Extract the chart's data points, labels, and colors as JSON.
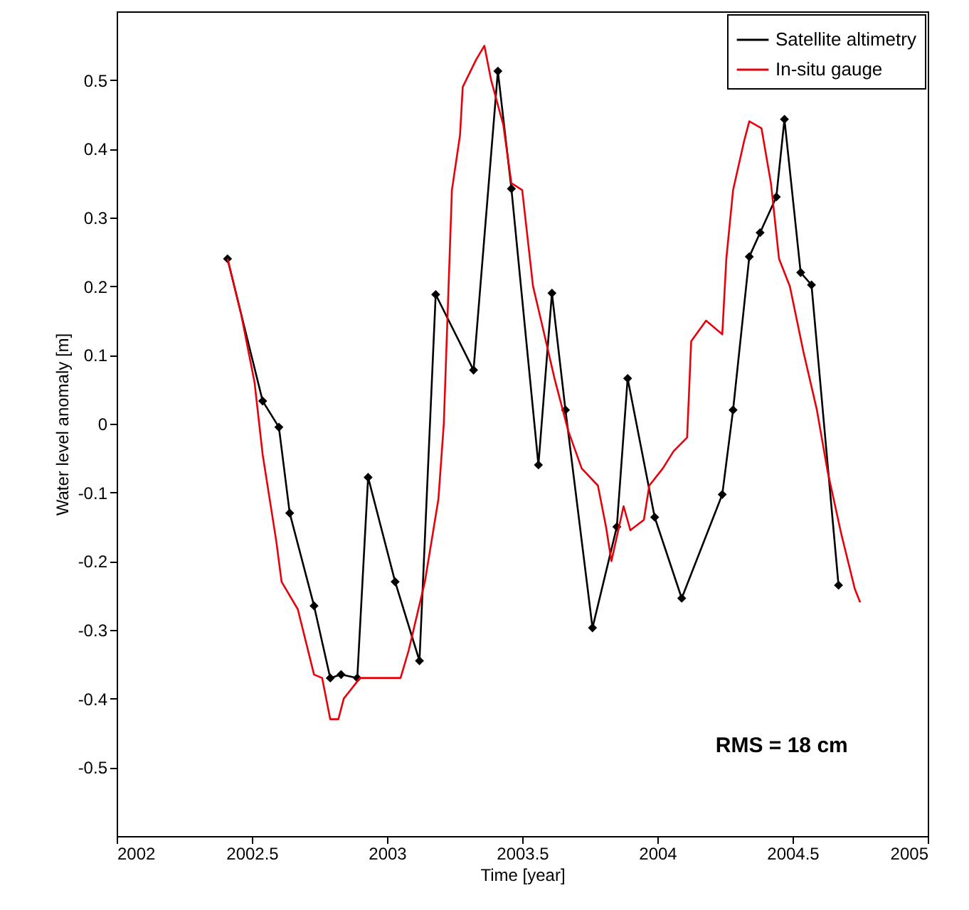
{
  "chart_data": {
    "type": "line",
    "xlabel": "Time [year]",
    "ylabel": "Water level anomaly [m]",
    "xlim": [
      2002,
      2005
    ],
    "xticks": [
      2002,
      2002.5,
      2003,
      2003.5,
      2004,
      2004.5,
      2005
    ],
    "ylim": [
      -0.6,
      0.6
    ],
    "yticks": [
      -0.5,
      -0.4,
      -0.3,
      -0.2,
      -0.1,
      0,
      0.1,
      0.2,
      0.3,
      0.4,
      0.5
    ],
    "grid": false,
    "legend": "top right",
    "annotations": [
      "RMS = 18 cm"
    ],
    "series": [
      {
        "name": "Satellite altimetry",
        "color": "#000000",
        "marker": "diamond",
        "x": [
          2002.41,
          2002.54,
          2002.6,
          2002.64,
          2002.73,
          2002.79,
          2002.83,
          2002.89,
          2002.93,
          2003.03,
          2003.12,
          2003.18,
          2003.32,
          2003.41,
          2003.46,
          2003.56,
          2003.61,
          2003.66,
          2003.76,
          2003.85,
          2003.89,
          2003.99,
          2004.09,
          2004.24,
          2004.28,
          2004.34,
          2004.38,
          2004.44,
          2004.47,
          2004.53,
          2004.57,
          2004.67
        ],
        "values": [
          0.24,
          0.033,
          -0.005,
          -0.13,
          -0.265,
          -0.37,
          -0.365,
          -0.37,
          -0.078,
          -0.23,
          -0.345,
          0.188,
          0.078,
          0.513,
          0.342,
          -0.06,
          0.19,
          0.02,
          -0.297,
          -0.15,
          0.066,
          -0.136,
          -0.254,
          -0.103,
          0.02,
          0.243,
          0.278,
          0.33,
          0.443,
          0.22,
          0.202,
          -0.235
        ]
      },
      {
        "name": "In-situ gauge",
        "color": "#e8000b",
        "marker": "none",
        "x": [
          2002.41,
          2002.46,
          2002.51,
          2002.54,
          2002.59,
          2002.61,
          2002.67,
          2002.73,
          2002.76,
          2002.79,
          2002.82,
          2002.84,
          2002.86,
          2002.9,
          2002.95,
          2003.05,
          2003.08,
          2003.14,
          2003.19,
          2003.21,
          2003.24,
          2003.27,
          2003.28,
          2003.33,
          2003.36,
          2003.385,
          2003.43,
          2003.46,
          2003.5,
          2003.54,
          2003.57,
          2003.62,
          2003.67,
          2003.72,
          2003.78,
          2003.81,
          2003.83,
          2003.875,
          2003.9,
          2003.95,
          2003.97,
          2004.02,
          2004.06,
          2004.11,
          2004.125,
          2004.18,
          2004.24,
          2004.255,
          2004.28,
          2004.32,
          2004.34,
          2004.385,
          2004.42,
          2004.45,
          2004.49,
          2004.54,
          2004.59,
          2004.63,
          2004.68,
          2004.73,
          2004.75
        ],
        "values": [
          0.24,
          0.16,
          0.06,
          -0.045,
          -0.17,
          -0.23,
          -0.27,
          -0.365,
          -0.37,
          -0.43,
          -0.43,
          -0.4,
          -0.39,
          -0.37,
          -0.37,
          -0.37,
          -0.33,
          -0.23,
          -0.11,
          0.0,
          0.34,
          0.42,
          0.49,
          0.53,
          0.55,
          0.5,
          0.435,
          0.35,
          0.34,
          0.2,
          0.15,
          0.065,
          -0.01,
          -0.065,
          -0.09,
          -0.15,
          -0.2,
          -0.12,
          -0.155,
          -0.14,
          -0.09,
          -0.065,
          -0.04,
          -0.02,
          0.12,
          0.15,
          0.13,
          0.24,
          0.34,
          0.41,
          0.44,
          0.43,
          0.35,
          0.24,
          0.2,
          0.105,
          0.02,
          -0.07,
          -0.16,
          -0.24,
          -0.26
        ]
      }
    ]
  }
}
